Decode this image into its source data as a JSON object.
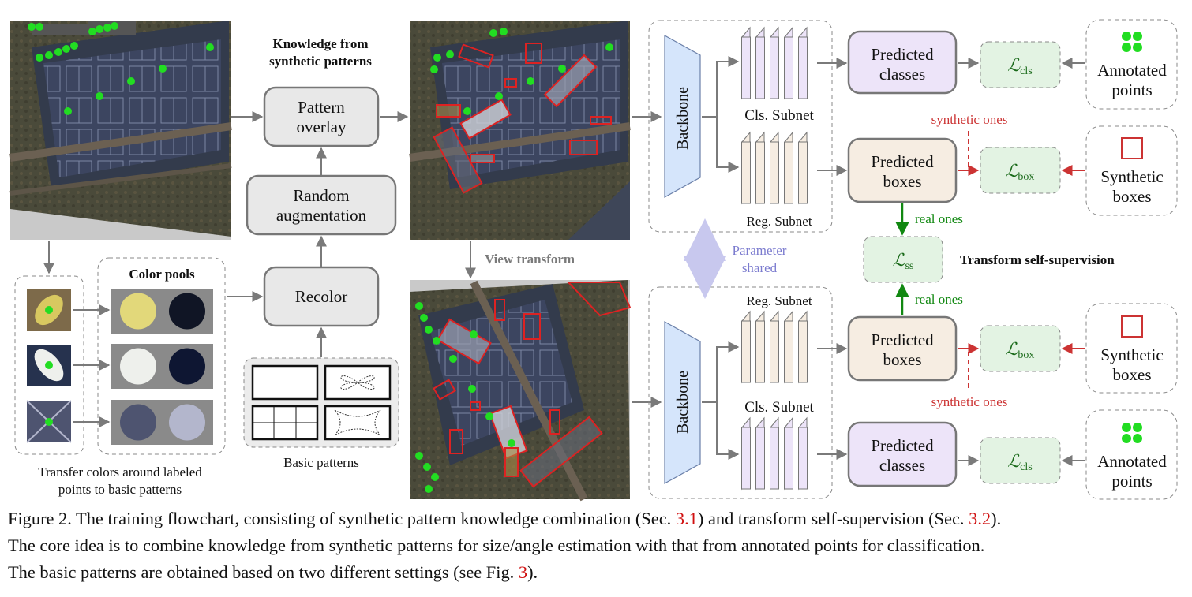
{
  "knowledge_title": [
    "Knowledge from",
    "synthetic patterns"
  ],
  "pattern_overlay": [
    "Pattern",
    "overlay"
  ],
  "random_augmentation": [
    "Random",
    "augmentation"
  ],
  "recolor": "Recolor",
  "color_pools_title": "Color pools",
  "color_pools": [
    {
      "colors": [
        "#e2d87a",
        "#101525"
      ]
    },
    {
      "colors": [
        "#eef0ec",
        "#0e1632"
      ]
    },
    {
      "colors": [
        "#4e5470",
        "#b3b6cc"
      ]
    }
  ],
  "transfer_caption": [
    "Transfer colors around labeled",
    "points to basic patterns"
  ],
  "basic_patterns_label": "Basic patterns",
  "view_transform": "View transform",
  "backbone": "Backbone",
  "cls_subnet": "Cls. Subnet",
  "reg_subnet": "Reg. Subnet",
  "parameter_shared": [
    "Parameter",
    "shared"
  ],
  "predicted_classes": [
    "Predicted",
    "classes"
  ],
  "predicted_boxes": [
    "Predicted",
    "boxes"
  ],
  "loss_cls": {
    "symbol": "ℒ",
    "sub": "cls"
  },
  "loss_box": {
    "symbol": "ℒ",
    "sub": "box"
  },
  "loss_ss": {
    "symbol": "ℒ",
    "sub": "ss"
  },
  "annotated_points": [
    "Annotated",
    "points"
  ],
  "synthetic_boxes": [
    "Synthetic",
    "boxes"
  ],
  "synthetic_ones": "synthetic ones",
  "real_ones": "real ones",
  "transform_self_supervision": "Transform self-supervision",
  "colors": {
    "point_green": "#22dd22",
    "box_red": "#cc3333",
    "arrow_grey": "#7a7a7a",
    "real_green": "#118811",
    "cls_fill": "#ede4f9",
    "reg_fill": "#f6ede2",
    "loss_fill": "#e3f3e3",
    "backbone_fill": "#d5e5fb",
    "param_blue": "#7c7ccf"
  },
  "caption": {
    "line1_a": "Figure 2. The training flowchart, consisting of synthetic pattern knowledge combination (Sec. ",
    "ref1": "3.1",
    "line1_b": ") and transform self-supervision (Sec. ",
    "ref2": "3.2",
    "line1_c": ").",
    "line2": "The core idea is to combine knowledge from synthetic patterns for size/angle estimation with that from annotated points for classification.",
    "line3_a": "The basic patterns are obtained based on two different settings (see Fig. ",
    "ref3": "3",
    "line3_b": ")."
  }
}
